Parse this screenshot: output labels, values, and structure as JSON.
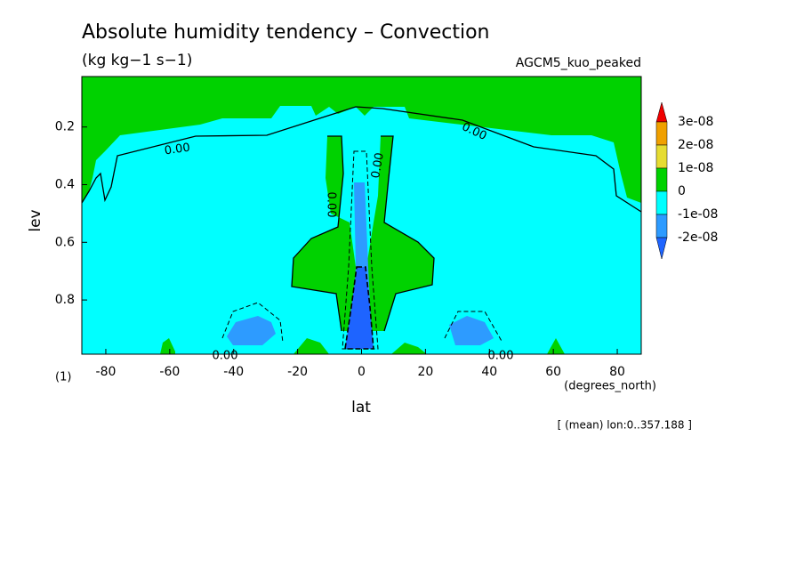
{
  "chart_data": {
    "type": "contour",
    "title": "Absolute humidity tendency – Convection",
    "subtitle": "(kg kg−1 s−1)",
    "model_label": "AGCM5_kuo_peaked",
    "x_label": "lat",
    "x_units": "(degrees_north)",
    "y_label": "lev",
    "page_number": "(1)",
    "footnote": "[ (mean) lon:0..357.188 ]",
    "xlim": [
      -87.5,
      87.5
    ],
    "xticks": [
      -80,
      -60,
      -40,
      -20,
      0,
      20,
      40,
      60,
      80
    ],
    "ylim": [
      0.025,
      0.988
    ],
    "yticks": [
      0.2,
      0.4,
      0.6,
      0.8
    ],
    "y_inverted": true,
    "contour_labels": [
      "0.00",
      "0.00",
      "0.00",
      "0.00",
      "0.00",
      "0.00"
    ],
    "colorbar": {
      "levels": [
        {
          "value": 3e-08,
          "label": "3e-08"
        },
        {
          "value": 2e-08,
          "label": "2e-08"
        },
        {
          "value": 1e-08,
          "label": "1e-08"
        },
        0,
        {
          "value": -1e-08,
          "label": "-1e-08"
        },
        {
          "value": -2e-08,
          "label": "-2e-08"
        }
      ],
      "colors": [
        "#f00000",
        "#f0a000",
        "#e6dc32",
        "#00d200",
        "#00ffff",
        "#2d9bff",
        "#1e64ff"
      ]
    }
  }
}
